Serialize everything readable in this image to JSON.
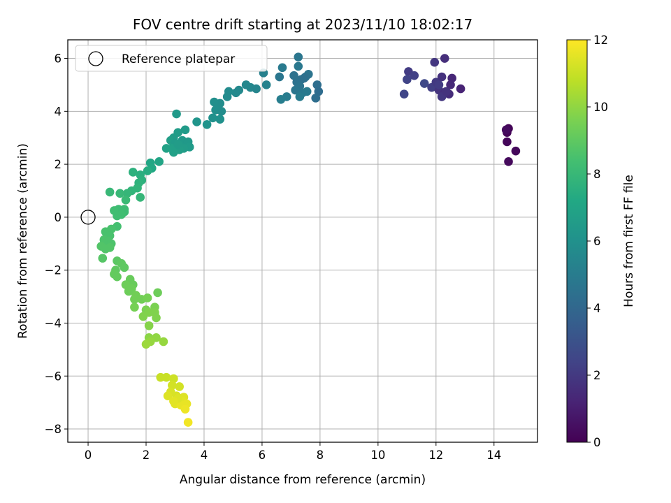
{
  "chart_data": {
    "type": "scatter",
    "title": "FOV centre drift starting at 2023/11/10 18:02:17",
    "xlabel": "Angular distance from reference (arcmin)",
    "ylabel": "Rotation from reference (arcmin)",
    "xlim": [
      -0.7,
      15.5
    ],
    "ylim": [
      -8.5,
      6.7
    ],
    "x_ticks": [
      0,
      2,
      4,
      6,
      8,
      10,
      12,
      14
    ],
    "y_ticks": [
      -8,
      -6,
      -4,
      -2,
      0,
      2,
      4,
      6
    ],
    "grid": true,
    "legend": {
      "placement": "top-left",
      "entries": [
        "Reference platepar"
      ]
    },
    "colorbar": {
      "label": "Hours from first FF file",
      "range": [
        0,
        12
      ],
      "ticks": [
        0,
        2,
        4,
        6,
        8,
        10,
        12
      ],
      "colormap": "viridis"
    },
    "reference_point": {
      "x": 0,
      "y": 0
    },
    "points": [
      {
        "x": 14.5,
        "y": 3.35,
        "c": 0.1
      },
      {
        "x": 14.45,
        "y": 3.2,
        "c": 0.15
      },
      {
        "x": 14.45,
        "y": 2.85,
        "c": 0.2
      },
      {
        "x": 14.75,
        "y": 2.5,
        "c": 0.25
      },
      {
        "x": 14.5,
        "y": 2.1,
        "c": 0.3
      },
      {
        "x": 14.42,
        "y": 3.3,
        "c": 0.35
      },
      {
        "x": 12.3,
        "y": 6.0,
        "c": 1.6
      },
      {
        "x": 11.95,
        "y": 5.85,
        "c": 1.9
      },
      {
        "x": 11.05,
        "y": 5.5,
        "c": 2.1
      },
      {
        "x": 11.25,
        "y": 5.35,
        "c": 2.3
      },
      {
        "x": 11.0,
        "y": 5.2,
        "c": 2.4
      },
      {
        "x": 10.9,
        "y": 4.65,
        "c": 2.5
      },
      {
        "x": 11.6,
        "y": 5.05,
        "c": 2.6
      },
      {
        "x": 11.85,
        "y": 4.9,
        "c": 2.2
      },
      {
        "x": 12.0,
        "y": 5.1,
        "c": 2.0
      },
      {
        "x": 12.1,
        "y": 4.8,
        "c": 1.8
      },
      {
        "x": 12.2,
        "y": 5.3,
        "c": 1.7
      },
      {
        "x": 12.3,
        "y": 4.7,
        "c": 1.6
      },
      {
        "x": 12.45,
        "y": 4.65,
        "c": 1.5
      },
      {
        "x": 12.5,
        "y": 5.0,
        "c": 1.4
      },
      {
        "x": 12.55,
        "y": 5.25,
        "c": 1.3
      },
      {
        "x": 12.85,
        "y": 4.85,
        "c": 1.2
      },
      {
        "x": 12.2,
        "y": 4.55,
        "c": 1.9
      },
      {
        "x": 12.1,
        "y": 5.0,
        "c": 2.1
      },
      {
        "x": 12.35,
        "y": 4.75,
        "c": 1.75
      },
      {
        "x": 7.25,
        "y": 6.05,
        "c": 4.7
      },
      {
        "x": 7.25,
        "y": 5.7,
        "c": 4.8
      },
      {
        "x": 6.7,
        "y": 5.65,
        "c": 4.9
      },
      {
        "x": 7.6,
        "y": 5.4,
        "c": 4.6
      },
      {
        "x": 7.5,
        "y": 5.3,
        "c": 4.5
      },
      {
        "x": 7.35,
        "y": 5.2,
        "c": 4.4
      },
      {
        "x": 7.2,
        "y": 5.1,
        "c": 4.5
      },
      {
        "x": 7.3,
        "y": 4.95,
        "c": 4.6
      },
      {
        "x": 7.15,
        "y": 4.8,
        "c": 4.7
      },
      {
        "x": 7.4,
        "y": 4.7,
        "c": 4.8
      },
      {
        "x": 7.55,
        "y": 4.75,
        "c": 4.9
      },
      {
        "x": 7.3,
        "y": 4.55,
        "c": 5.0
      },
      {
        "x": 6.85,
        "y": 4.55,
        "c": 5.0
      },
      {
        "x": 6.65,
        "y": 4.45,
        "c": 5.1
      },
      {
        "x": 7.9,
        "y": 5.0,
        "c": 4.3
      },
      {
        "x": 7.95,
        "y": 4.75,
        "c": 4.2
      },
      {
        "x": 7.85,
        "y": 4.5,
        "c": 4.3
      },
      {
        "x": 7.45,
        "y": 5.25,
        "c": 4.4
      },
      {
        "x": 7.1,
        "y": 5.35,
        "c": 4.5
      },
      {
        "x": 6.6,
        "y": 5.3,
        "c": 4.7
      },
      {
        "x": 6.05,
        "y": 5.45,
        "c": 5.2
      },
      {
        "x": 6.15,
        "y": 5.0,
        "c": 5.3
      },
      {
        "x": 5.2,
        "y": 4.8,
        "c": 5.6
      },
      {
        "x": 5.6,
        "y": 4.9,
        "c": 5.5
      },
      {
        "x": 5.8,
        "y": 4.85,
        "c": 5.4
      },
      {
        "x": 5.45,
        "y": 5.0,
        "c": 5.5
      },
      {
        "x": 5.1,
        "y": 4.7,
        "c": 5.6
      },
      {
        "x": 4.85,
        "y": 4.75,
        "c": 5.7
      },
      {
        "x": 4.8,
        "y": 4.55,
        "c": 5.7
      },
      {
        "x": 4.55,
        "y": 4.3,
        "c": 5.8
      },
      {
        "x": 4.35,
        "y": 4.35,
        "c": 5.9
      },
      {
        "x": 4.4,
        "y": 4.05,
        "c": 5.9
      },
      {
        "x": 4.6,
        "y": 4.0,
        "c": 5.8
      },
      {
        "x": 4.55,
        "y": 3.7,
        "c": 6.0
      },
      {
        "x": 4.3,
        "y": 3.75,
        "c": 6.0
      },
      {
        "x": 4.1,
        "y": 3.5,
        "c": 6.1
      },
      {
        "x": 3.75,
        "y": 3.6,
        "c": 6.2
      },
      {
        "x": 3.05,
        "y": 3.9,
        "c": 6.4
      },
      {
        "x": 3.35,
        "y": 3.3,
        "c": 6.5
      },
      {
        "x": 3.1,
        "y": 3.2,
        "c": 6.6
      },
      {
        "x": 2.95,
        "y": 3.0,
        "c": 6.6
      },
      {
        "x": 2.85,
        "y": 2.9,
        "c": 6.7
      },
      {
        "x": 3.0,
        "y": 2.8,
        "c": 6.5
      },
      {
        "x": 3.25,
        "y": 2.9,
        "c": 6.4
      },
      {
        "x": 3.45,
        "y": 2.85,
        "c": 6.4
      },
      {
        "x": 3.5,
        "y": 2.65,
        "c": 6.5
      },
      {
        "x": 3.3,
        "y": 2.6,
        "c": 6.6
      },
      {
        "x": 3.15,
        "y": 2.55,
        "c": 6.7
      },
      {
        "x": 2.9,
        "y": 2.6,
        "c": 6.8
      },
      {
        "x": 2.7,
        "y": 2.6,
        "c": 6.9
      },
      {
        "x": 2.95,
        "y": 2.45,
        "c": 6.8
      },
      {
        "x": 3.1,
        "y": 2.75,
        "c": 6.6
      },
      {
        "x": 2.45,
        "y": 2.1,
        "c": 7.0
      },
      {
        "x": 2.15,
        "y": 2.05,
        "c": 7.1
      },
      {
        "x": 2.2,
        "y": 1.85,
        "c": 7.2
      },
      {
        "x": 2.05,
        "y": 1.75,
        "c": 7.4
      },
      {
        "x": 1.8,
        "y": 1.6,
        "c": 7.5
      },
      {
        "x": 1.55,
        "y": 1.7,
        "c": 7.6
      },
      {
        "x": 1.85,
        "y": 1.4,
        "c": 7.6
      },
      {
        "x": 1.75,
        "y": 1.3,
        "c": 7.7
      },
      {
        "x": 1.7,
        "y": 1.1,
        "c": 7.8
      },
      {
        "x": 1.5,
        "y": 1.0,
        "c": 7.8
      },
      {
        "x": 1.35,
        "y": 0.9,
        "c": 7.9
      },
      {
        "x": 1.8,
        "y": 0.75,
        "c": 7.9
      },
      {
        "x": 1.1,
        "y": 0.9,
        "c": 8.0
      },
      {
        "x": 0.75,
        "y": 0.95,
        "c": 8.0
      },
      {
        "x": 1.3,
        "y": 0.65,
        "c": 8.1
      },
      {
        "x": 1.25,
        "y": 0.3,
        "c": 8.2
      },
      {
        "x": 1.05,
        "y": 0.3,
        "c": 8.2
      },
      {
        "x": 1.25,
        "y": 0.2,
        "c": 8.2
      },
      {
        "x": 0.9,
        "y": 0.25,
        "c": 8.3
      },
      {
        "x": 1.15,
        "y": 0.1,
        "c": 8.3
      },
      {
        "x": 1.0,
        "y": 0.05,
        "c": 8.3
      },
      {
        "x": 1.0,
        "y": -0.35,
        "c": 8.4
      },
      {
        "x": 0.8,
        "y": -0.45,
        "c": 8.5
      },
      {
        "x": 0.6,
        "y": -0.55,
        "c": 8.5
      },
      {
        "x": 0.75,
        "y": -0.7,
        "c": 8.5
      },
      {
        "x": 0.55,
        "y": -0.85,
        "c": 8.6
      },
      {
        "x": 0.7,
        "y": -0.9,
        "c": 8.6
      },
      {
        "x": 0.55,
        "y": -1.0,
        "c": 8.6
      },
      {
        "x": 0.8,
        "y": -1.0,
        "c": 8.6
      },
      {
        "x": 0.45,
        "y": -1.1,
        "c": 8.7
      },
      {
        "x": 0.6,
        "y": -1.2,
        "c": 8.7
      },
      {
        "x": 0.75,
        "y": -1.15,
        "c": 8.7
      },
      {
        "x": 0.5,
        "y": -1.55,
        "c": 8.8
      },
      {
        "x": 1.0,
        "y": -1.65,
        "c": 8.9
      },
      {
        "x": 1.15,
        "y": -1.75,
        "c": 9.0
      },
      {
        "x": 1.25,
        "y": -1.9,
        "c": 9.0
      },
      {
        "x": 0.95,
        "y": -2.0,
        "c": 9.0
      },
      {
        "x": 0.9,
        "y": -2.15,
        "c": 9.1
      },
      {
        "x": 1.0,
        "y": -2.25,
        "c": 9.1
      },
      {
        "x": 1.45,
        "y": -2.35,
        "c": 9.2
      },
      {
        "x": 1.55,
        "y": -2.55,
        "c": 9.2
      },
      {
        "x": 1.3,
        "y": -2.55,
        "c": 9.3
      },
      {
        "x": 1.5,
        "y": -2.7,
        "c": 9.3
      },
      {
        "x": 1.4,
        "y": -2.8,
        "c": 9.3
      },
      {
        "x": 1.65,
        "y": -2.95,
        "c": 9.4
      },
      {
        "x": 1.85,
        "y": -3.1,
        "c": 9.4
      },
      {
        "x": 1.6,
        "y": -3.1,
        "c": 9.4
      },
      {
        "x": 1.6,
        "y": -3.4,
        "c": 9.5
      },
      {
        "x": 2.05,
        "y": -3.05,
        "c": 9.5
      },
      {
        "x": 2.4,
        "y": -2.85,
        "c": 9.3
      },
      {
        "x": 2.0,
        "y": -3.5,
        "c": 9.6
      },
      {
        "x": 2.3,
        "y": -3.4,
        "c": 9.6
      },
      {
        "x": 2.3,
        "y": -3.6,
        "c": 9.7
      },
      {
        "x": 2.1,
        "y": -3.6,
        "c": 9.7
      },
      {
        "x": 2.35,
        "y": -3.8,
        "c": 9.7
      },
      {
        "x": 1.9,
        "y": -3.75,
        "c": 9.7
      },
      {
        "x": 2.1,
        "y": -4.1,
        "c": 9.8
      },
      {
        "x": 2.1,
        "y": -4.55,
        "c": 9.9
      },
      {
        "x": 2.35,
        "y": -4.55,
        "c": 10.0
      },
      {
        "x": 2.15,
        "y": -4.7,
        "c": 10.1
      },
      {
        "x": 2.6,
        "y": -4.7,
        "c": 10.1
      },
      {
        "x": 2.0,
        "y": -4.8,
        "c": 10.2
      },
      {
        "x": 2.5,
        "y": -6.05,
        "c": 11.0
      },
      {
        "x": 2.7,
        "y": -6.05,
        "c": 11.0
      },
      {
        "x": 2.95,
        "y": -6.1,
        "c": 11.1
      },
      {
        "x": 2.9,
        "y": -6.35,
        "c": 11.2
      },
      {
        "x": 3.15,
        "y": -6.4,
        "c": 11.2
      },
      {
        "x": 2.85,
        "y": -6.6,
        "c": 11.3
      },
      {
        "x": 3.05,
        "y": -6.75,
        "c": 11.3
      },
      {
        "x": 2.75,
        "y": -6.75,
        "c": 11.4
      },
      {
        "x": 3.3,
        "y": -6.8,
        "c": 11.4
      },
      {
        "x": 3.25,
        "y": -6.95,
        "c": 11.5
      },
      {
        "x": 3.0,
        "y": -7.05,
        "c": 11.5
      },
      {
        "x": 3.2,
        "y": -7.1,
        "c": 11.6
      },
      {
        "x": 3.4,
        "y": -7.05,
        "c": 11.6
      },
      {
        "x": 3.35,
        "y": -7.25,
        "c": 11.7
      },
      {
        "x": 3.45,
        "y": -7.75,
        "c": 11.8
      },
      {
        "x": 3.1,
        "y": -6.85,
        "c": 11.4
      },
      {
        "x": 2.95,
        "y": -6.95,
        "c": 11.5
      }
    ]
  }
}
